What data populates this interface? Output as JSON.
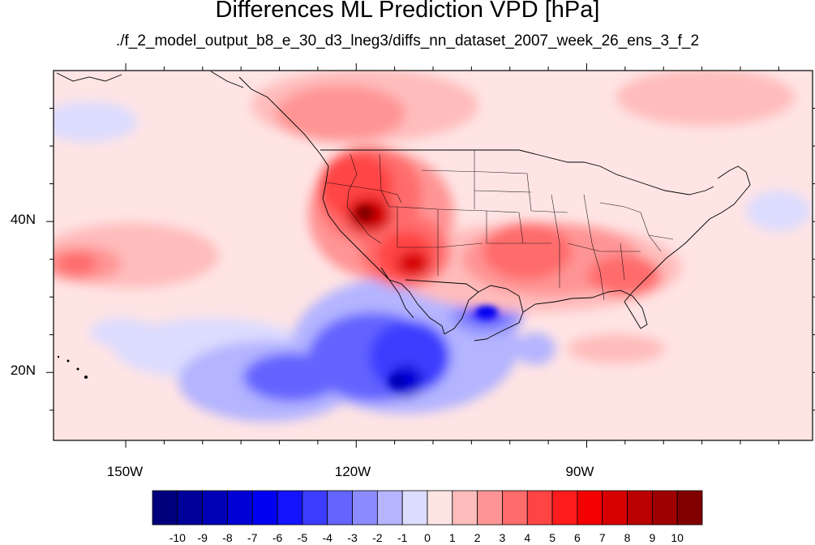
{
  "title": "Differences ML Prediction VPD [hPa]",
  "subtitle": "./f_2_model_output_b8_e_30_d3_lneg3/diffs_nn_dataset_2007_week_26_ens_3_f_2",
  "map": {
    "lat_ticks": [
      {
        "value": 40,
        "label": "40N"
      },
      {
        "value": 20,
        "label": "20N"
      }
    ],
    "lon_ticks": [
      {
        "value": -150,
        "label": "150W"
      },
      {
        "value": -120,
        "label": "120W"
      },
      {
        "value": -90,
        "label": "90W"
      }
    ],
    "lon_range": [
      -159.4,
      -60.6
    ],
    "lat_range": [
      11,
      60
    ]
  },
  "colorbar": {
    "colors": [
      "#00007d",
      "#00009a",
      "#0000b7",
      "#0000d5",
      "#0000f2",
      "#1414ff",
      "#3c3cff",
      "#6464ff",
      "#8c8cff",
      "#b4b4ff",
      "#dcdcff",
      "#ffe4e4",
      "#ffbcbc",
      "#ff9494",
      "#ff6c6c",
      "#ff4444",
      "#ff1c1c",
      "#f40000",
      "#d70000",
      "#ba0000",
      "#9d0000",
      "#800000"
    ],
    "labels": [
      "-10",
      "-9",
      "-8",
      "-7",
      "-6",
      "-5",
      "-4",
      "-3",
      "-2",
      "-1",
      "0",
      "1",
      "2",
      "3",
      "4",
      "5",
      "6",
      "7",
      "8",
      "9",
      "10"
    ]
  }
}
